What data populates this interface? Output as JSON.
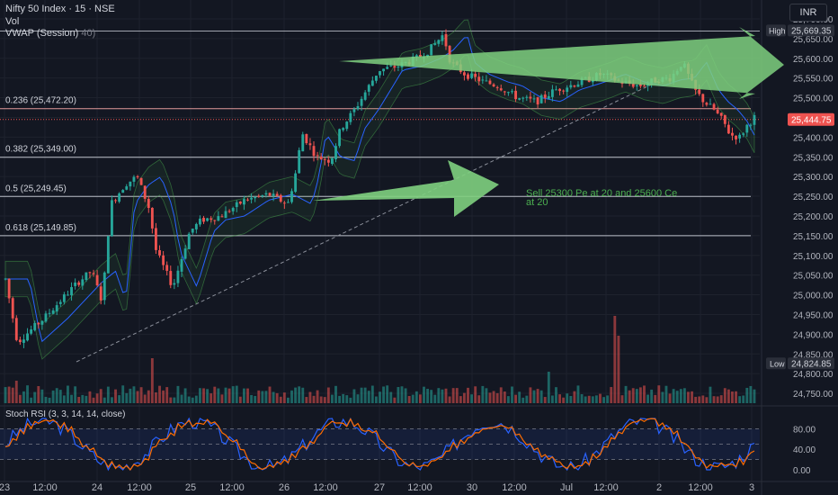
{
  "header": {
    "symbol_line": "Nifty 50 Index · 15 · NSE",
    "vol_label": "Vol",
    "vwap_label": "VWAP (Session)",
    "currency": "INR",
    "hidden_fragment": "40)"
  },
  "colors": {
    "background": "#131722",
    "up": "#26a69a",
    "down": "#ef5350",
    "fib_line": "#cfd3dc",
    "fib_236": "#f7a8a8",
    "annotation_arrow": "#7fd07f",
    "vwap": "#2962ff",
    "stoch_k": "#2962ff",
    "stoch_d": "#ff6d00"
  },
  "chart_data": {
    "type": "candlestick",
    "y_axis": {
      "min": 24725,
      "max": 25725,
      "ticks": [
        25700,
        25650,
        25600,
        25550,
        25500,
        25450,
        25400,
        25350,
        25300,
        25250,
        25200,
        25150,
        25100,
        25050,
        25000,
        24950,
        24900,
        24850,
        24800,
        24750
      ],
      "tick_labels": [
        "25,700.00",
        "25,650.00",
        "25,600.00",
        "25,550.00",
        "25,500.00",
        "25,450.00",
        "25,400.00",
        "25,350.00",
        "25,300.00",
        "25,250.00",
        "25,200.00",
        "25,150.00",
        "25,100.00",
        "25,050.00",
        "25,000.00",
        "24,950.00",
        "24,900.00",
        "24,850.00",
        "24,800.00",
        "24,750.00"
      ]
    },
    "x_axis": {
      "labels": [
        "23",
        "12:00",
        "24",
        "12:00",
        "25",
        "12:00",
        "26",
        "12:00",
        "27",
        "12:00",
        "30",
        "12:00",
        "Jul",
        "12:00",
        "2",
        "12:00",
        "3"
      ]
    },
    "price_labels": {
      "high": {
        "label": "High",
        "value": 25669.35,
        "text": "25,669.35"
      },
      "last": {
        "value": 25444.75,
        "text": "25,444.75"
      },
      "low": {
        "label": "Low",
        "value": 24824.85,
        "text": "24,824.85"
      }
    },
    "fib_levels": [
      {
        "label": "0.236 (25,472.20)",
        "value": 25472.2
      },
      {
        "label": "0.382 (25,349.00)",
        "value": 25349.0
      },
      {
        "label": "0.5 (25,249.45)",
        "value": 25249.45
      },
      {
        "label": "0.618 (25,149.85)",
        "value": 25149.85
      }
    ],
    "annotation": {
      "text_line1": "Sell 25300 Pe at 20 and 25600 Ce",
      "text_line2": "at 20"
    },
    "stoch_rsi": {
      "label": "Stoch RSI (3, 3, 14, 14, close)",
      "ticks": [
        80,
        40,
        0
      ],
      "tick_labels": [
        "80.00",
        "40.00",
        "0.00"
      ],
      "band_upper": 80,
      "band_lower": 20
    },
    "candles_count": 205
  }
}
